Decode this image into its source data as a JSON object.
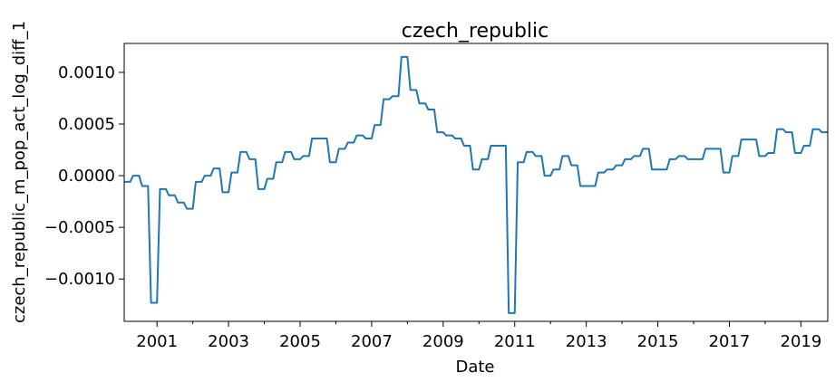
{
  "chart_data": {
    "type": "line",
    "title": "czech_republic",
    "xlabel": "Date",
    "ylabel": "czech_republic_m_pop_act_log_diff_1",
    "x_tick_labels": [
      "2001",
      "2003",
      "2005",
      "2007",
      "2009",
      "2011",
      "2013",
      "2015",
      "2017",
      "2019"
    ],
    "y_tick_labels": [
      "−0.0010",
      "−0.0005",
      "0.0000",
      "0.0005",
      "0.0010"
    ],
    "ylim": [
      -0.00141,
      0.00128
    ],
    "xlim": [
      "2000-02",
      "2019-10"
    ],
    "grid": false,
    "line_color": "#1f77b4",
    "series": [
      {
        "points": [
          [
            "2000-02",
            -6e-05
          ],
          [
            "2000-04",
            -6e-05
          ],
          [
            "2000-05",
            0.0
          ],
          [
            "2000-07",
            0.0
          ],
          [
            "2000-08",
            -0.0001
          ],
          [
            "2000-10",
            -0.0001
          ],
          [
            "2000-11",
            -0.00123
          ],
          [
            "2001-01",
            -0.00123
          ],
          [
            "2001-02",
            -0.00013
          ],
          [
            "2001-04",
            -0.00013
          ],
          [
            "2001-05",
            -0.00019
          ],
          [
            "2001-07",
            -0.00019
          ],
          [
            "2001-08",
            -0.00026
          ],
          [
            "2001-10",
            -0.00026
          ],
          [
            "2001-11",
            -0.00032
          ],
          [
            "2002-01",
            -0.00032
          ],
          [
            "2002-02",
            -6e-05
          ],
          [
            "2002-04",
            -6e-05
          ],
          [
            "2002-05",
            0.0
          ],
          [
            "2002-07",
            0.0
          ],
          [
            "2002-08",
            7e-05
          ],
          [
            "2002-10",
            7e-05
          ],
          [
            "2002-11",
            -0.00016
          ],
          [
            "2003-01",
            -0.00016
          ],
          [
            "2003-02",
            3e-05
          ],
          [
            "2003-04",
            3e-05
          ],
          [
            "2003-05",
            0.00023
          ],
          [
            "2003-07",
            0.00023
          ],
          [
            "2003-08",
            0.00016
          ],
          [
            "2003-10",
            0.00016
          ],
          [
            "2003-11",
            -0.00013
          ],
          [
            "2004-01",
            -0.00013
          ],
          [
            "2004-02",
            -3e-05
          ],
          [
            "2004-04",
            -3e-05
          ],
          [
            "2004-05",
            0.00013
          ],
          [
            "2004-07",
            0.00013
          ],
          [
            "2004-08",
            0.00023
          ],
          [
            "2004-10",
            0.00023
          ],
          [
            "2004-11",
            0.00016
          ],
          [
            "2005-01",
            0.00016
          ],
          [
            "2005-02",
            0.00019
          ],
          [
            "2005-04",
            0.00019
          ],
          [
            "2005-05",
            0.00036
          ],
          [
            "2005-07",
            0.00036
          ],
          [
            "2005-08",
            0.00036
          ],
          [
            "2005-10",
            0.00036
          ],
          [
            "2005-11",
            0.00013
          ],
          [
            "2006-01",
            0.00013
          ],
          [
            "2006-02",
            0.00026
          ],
          [
            "2006-04",
            0.00026
          ],
          [
            "2006-05",
            0.00032
          ],
          [
            "2006-07",
            0.00032
          ],
          [
            "2006-08",
            0.00039
          ],
          [
            "2006-10",
            0.00039
          ],
          [
            "2006-11",
            0.00036
          ],
          [
            "2007-01",
            0.00036
          ],
          [
            "2007-02",
            0.00049
          ],
          [
            "2007-04",
            0.00049
          ],
          [
            "2007-05",
            0.00074
          ],
          [
            "2007-07",
            0.00074
          ],
          [
            "2007-08",
            0.00077
          ],
          [
            "2007-10",
            0.00077
          ],
          [
            "2007-11",
            0.00115
          ],
          [
            "2008-01",
            0.00115
          ],
          [
            "2008-02",
            0.00083
          ],
          [
            "2008-04",
            0.00083
          ],
          [
            "2008-05",
            0.0007
          ],
          [
            "2008-07",
            0.0007
          ],
          [
            "2008-08",
            0.00064
          ],
          [
            "2008-10",
            0.00064
          ],
          [
            "2008-11",
            0.00042
          ],
          [
            "2009-01",
            0.00042
          ],
          [
            "2009-02",
            0.00039
          ],
          [
            "2009-04",
            0.00039
          ],
          [
            "2009-05",
            0.00036
          ],
          [
            "2009-07",
            0.00036
          ],
          [
            "2009-08",
            0.00029
          ],
          [
            "2009-10",
            0.00029
          ],
          [
            "2009-11",
            6e-05
          ],
          [
            "2010-01",
            6e-05
          ],
          [
            "2010-02",
            0.00016
          ],
          [
            "2010-04",
            0.00016
          ],
          [
            "2010-05",
            0.00029
          ],
          [
            "2010-07",
            0.00029
          ],
          [
            "2010-08",
            0.00029
          ],
          [
            "2010-10",
            0.00029
          ],
          [
            "2010-11",
            -0.00133
          ],
          [
            "2011-01",
            -0.00133
          ],
          [
            "2011-02",
            0.00013
          ],
          [
            "2011-04",
            0.00013
          ],
          [
            "2011-05",
            0.00023
          ],
          [
            "2011-07",
            0.00023
          ],
          [
            "2011-08",
            0.00019
          ],
          [
            "2011-10",
            0.00019
          ],
          [
            "2011-11",
            0.0
          ],
          [
            "2012-01",
            0.0
          ],
          [
            "2012-02",
            6e-05
          ],
          [
            "2012-04",
            6e-05
          ],
          [
            "2012-05",
            0.00019
          ],
          [
            "2012-07",
            0.00019
          ],
          [
            "2012-08",
            0.0001
          ],
          [
            "2012-10",
            0.0001
          ],
          [
            "2012-11",
            -0.0001
          ],
          [
            "2013-01",
            -0.0001
          ],
          [
            "2013-02",
            -0.0001
          ],
          [
            "2013-04",
            -0.0001
          ],
          [
            "2013-05",
            3e-05
          ],
          [
            "2013-07",
            3e-05
          ],
          [
            "2013-08",
            6e-05
          ],
          [
            "2013-10",
            6e-05
          ],
          [
            "2013-11",
            0.0001
          ],
          [
            "2014-01",
            0.0001
          ],
          [
            "2014-02",
            0.00016
          ],
          [
            "2014-04",
            0.00016
          ],
          [
            "2014-05",
            0.00019
          ],
          [
            "2014-07",
            0.00019
          ],
          [
            "2014-08",
            0.00026
          ],
          [
            "2014-10",
            0.00026
          ],
          [
            "2014-11",
            6e-05
          ],
          [
            "2015-01",
            6e-05
          ],
          [
            "2015-02",
            6e-05
          ],
          [
            "2015-04",
            6e-05
          ],
          [
            "2015-05",
            0.00016
          ],
          [
            "2015-07",
            0.00016
          ],
          [
            "2015-08",
            0.00019
          ],
          [
            "2015-10",
            0.00019
          ],
          [
            "2015-11",
            0.00016
          ],
          [
            "2016-01",
            0.00016
          ],
          [
            "2016-02",
            0.00016
          ],
          [
            "2016-04",
            0.00016
          ],
          [
            "2016-05",
            0.00026
          ],
          [
            "2016-07",
            0.00026
          ],
          [
            "2016-08",
            0.00026
          ],
          [
            "2016-10",
            0.00026
          ],
          [
            "2016-11",
            3e-05
          ],
          [
            "2017-01",
            3e-05
          ],
          [
            "2017-02",
            0.00019
          ],
          [
            "2017-04",
            0.00019
          ],
          [
            "2017-05",
            0.00035
          ],
          [
            "2017-07",
            0.00035
          ],
          [
            "2017-08",
            0.00035
          ],
          [
            "2017-10",
            0.00035
          ],
          [
            "2017-11",
            0.00019
          ],
          [
            "2018-01",
            0.00019
          ],
          [
            "2018-02",
            0.00022
          ],
          [
            "2018-04",
            0.00022
          ],
          [
            "2018-05",
            0.00045
          ],
          [
            "2018-07",
            0.00045
          ],
          [
            "2018-08",
            0.00042
          ],
          [
            "2018-10",
            0.00042
          ],
          [
            "2018-11",
            0.00022
          ],
          [
            "2019-01",
            0.00022
          ],
          [
            "2019-02",
            0.00029
          ],
          [
            "2019-04",
            0.00029
          ],
          [
            "2019-05",
            0.00045
          ],
          [
            "2019-07",
            0.00045
          ],
          [
            "2019-08",
            0.00042
          ],
          [
            "2019-10",
            0.00042
          ]
        ]
      }
    ]
  }
}
